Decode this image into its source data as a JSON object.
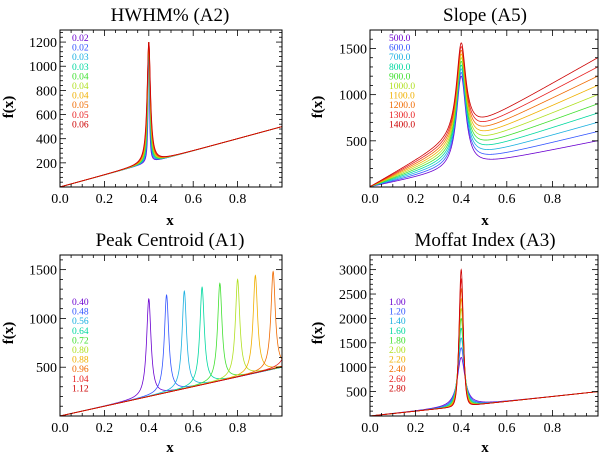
{
  "figure": {
    "background": "#ffffff"
  },
  "chart_data": [
    {
      "type": "line",
      "title": "HWHM% (A2)",
      "xlabel": "x",
      "ylabel": "f(x)",
      "xlim": [
        0.0,
        1.0
      ],
      "ylim": [
        0,
        1300
      ],
      "xticks": [
        0.0,
        0.2,
        0.4,
        0.6,
        0.8
      ],
      "xtick_labels": [
        "0.0",
        "0.2",
        "0.4",
        "0.6",
        "0.8"
      ],
      "yticks": [
        200,
        400,
        600,
        800,
        1000,
        1200
      ],
      "ytick_labels": [
        "200",
        "400",
        "600",
        "800",
        "1000",
        "1200"
      ],
      "model": "lorentzian-plus-linear",
      "vary": "hwhm",
      "legend_position": "top-left",
      "legend_labels": [
        "0.02",
        "0.02",
        "0.03",
        "0.03",
        "0.04",
        "0.04",
        "0.04",
        "0.05",
        "0.05",
        "0.06"
      ],
      "series_colors": [
        "#6a00d0",
        "#3355ff",
        "#1ab0e0",
        "#00d8a0",
        "#40e030",
        "#b0e020",
        "#f0b000",
        "#f06a00",
        "#e82020",
        "#cc0000"
      ],
      "params": {
        "amplitude": 1000,
        "center": 0.4,
        "slope": 500,
        "hwhm": [
          0.0033,
          0.004,
          0.0047,
          0.0053,
          0.006,
          0.0067,
          0.0073,
          0.008,
          0.0087,
          0.0093
        ]
      }
    },
    {
      "type": "line",
      "title": "Slope (A5)",
      "xlabel": "x",
      "ylabel": "f(x)",
      "xlim": [
        0.0,
        1.0
      ],
      "ylim": [
        0,
        1700
      ],
      "xticks": [
        0.0,
        0.2,
        0.4,
        0.6,
        0.8
      ],
      "xtick_labels": [
        "0.0",
        "0.2",
        "0.4",
        "0.6",
        "0.8"
      ],
      "yticks": [
        500,
        1000,
        1500
      ],
      "ytick_labels": [
        "500",
        "1000",
        "1500"
      ],
      "model": "lorentzian-plus-linear",
      "vary": "slope",
      "legend_position": "top-left",
      "legend_labels": [
        "500.0",
        "600.0",
        "700.0",
        "800.0",
        "900.0",
        "1000.0",
        "1100.0",
        "1200.0",
        "1300.0",
        "1400.0"
      ],
      "series_colors": [
        "#6a00d0",
        "#3355ff",
        "#1ab0e0",
        "#00d8a0",
        "#40e030",
        "#b0e020",
        "#f0b000",
        "#f06a00",
        "#e82020",
        "#cc0000"
      ],
      "params": {
        "amplitude": 1000,
        "center": 0.4,
        "hwhm": 0.025,
        "slope": [
          500,
          600,
          700,
          800,
          900,
          1000,
          1100,
          1200,
          1300,
          1400
        ]
      }
    },
    {
      "type": "line",
      "title": "Peak Centroid (A1)",
      "xlabel": "x",
      "ylabel": "f(x)",
      "xlim": [
        0.0,
        1.0
      ],
      "ylim": [
        0,
        1650
      ],
      "xticks": [
        0.0,
        0.2,
        0.4,
        0.6,
        0.8
      ],
      "xtick_labels": [
        "0.0",
        "0.2",
        "0.4",
        "0.6",
        "0.8"
      ],
      "yticks": [
        500,
        1000,
        1500
      ],
      "ytick_labels": [
        "500",
        "1000",
        "1500"
      ],
      "model": "lorentzian-plus-linear",
      "vary": "center",
      "legend_position": "middle-left",
      "legend_labels": [
        "0.40",
        "0.48",
        "0.56",
        "0.64",
        "0.72",
        "0.80",
        "0.88",
        "0.96",
        "1.04",
        "1.12"
      ],
      "series_colors": [
        "#6a00d0",
        "#3355ff",
        "#1ab0e0",
        "#00d8a0",
        "#40e030",
        "#b0e020",
        "#f0b000",
        "#f06a00",
        "#e82020",
        "#cc0000"
      ],
      "params": {
        "amplitude": 1000,
        "hwhm": 0.012,
        "slope": 500,
        "center": [
          0.4,
          0.48,
          0.56,
          0.64,
          0.72,
          0.8,
          0.88,
          0.96,
          1.04,
          1.12
        ]
      }
    },
    {
      "type": "line",
      "title": "Moffat Index (A3)",
      "xlabel": "x",
      "ylabel": "f(x)",
      "xlim": [
        0.0,
        1.0
      ],
      "ylim": [
        0,
        3300
      ],
      "xticks": [
        0.0,
        0.2,
        0.4,
        0.6,
        0.8
      ],
      "xtick_labels": [
        "0.0",
        "0.2",
        "0.4",
        "0.6",
        "0.8"
      ],
      "yticks": [
        500,
        1000,
        1500,
        2000,
        2500,
        3000
      ],
      "ytick_labels": [
        "500",
        "1000",
        "1500",
        "2000",
        "2500",
        "3000"
      ],
      "model": "moffat-plus-linear",
      "vary": "index",
      "legend_position": "middle-left",
      "legend_labels": [
        "1.00",
        "1.20",
        "1.40",
        "1.60",
        "1.80",
        "2.00",
        "2.20",
        "2.40",
        "2.60",
        "2.80"
      ],
      "series_colors": [
        "#6a00d0",
        "#3355ff",
        "#1ab0e0",
        "#00d8a0",
        "#40e030",
        "#b0e020",
        "#f0b000",
        "#f06a00",
        "#e82020",
        "#cc0000"
      ],
      "params": {
        "center": 0.4,
        "width": 0.02,
        "slope": 500,
        "peak": [
          1000,
          1200,
          1400,
          1600,
          1800,
          2000,
          2200,
          2400,
          2600,
          2800
        ],
        "index": [
          1.0,
          1.2,
          1.4,
          1.6,
          1.8,
          2.0,
          2.2,
          2.4,
          2.6,
          2.8
        ]
      }
    }
  ]
}
